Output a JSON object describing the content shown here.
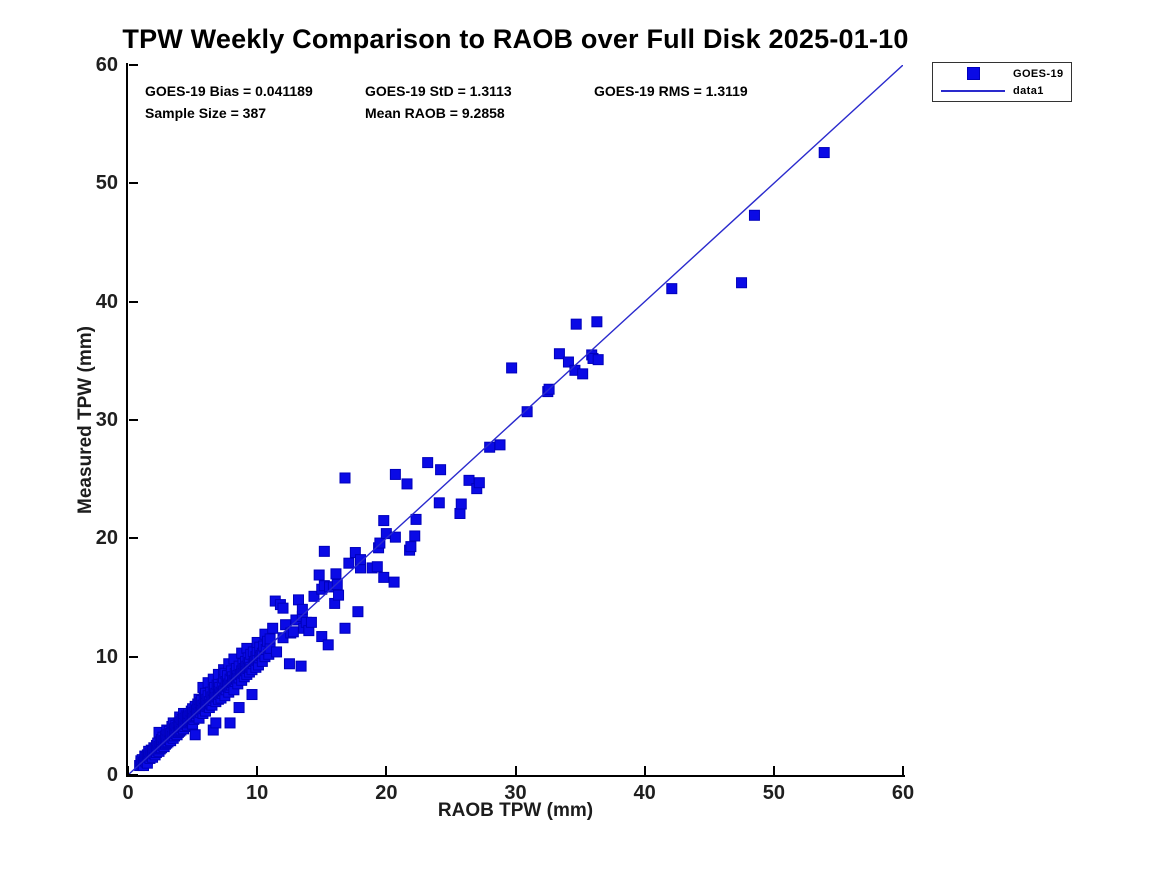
{
  "colors": {
    "marker_fill": "#0a0ae6",
    "marker_edge": "#0000bb",
    "line": "#2a2acd",
    "axis": "#000000",
    "tick_text": "#1f1f1f"
  },
  "stats": [
    {
      "text": "GOES-19 Bias = 0.041189"
    },
    {
      "text": "GOES-19 StD = 1.3113"
    },
    {
      "text": "GOES-19 RMS = 1.3119"
    },
    {
      "text": "Sample Size = 387"
    },
    {
      "text": "Mean RAOB = 9.2858"
    }
  ],
  "legend": {
    "entries": [
      {
        "label": "GOES-19",
        "swatch": "square-marker"
      },
      {
        "label": "data1",
        "swatch": "line"
      }
    ]
  },
  "chart_data": {
    "type": "scatter",
    "title": "TPW Weekly Comparison to RAOB over Full Disk 2025-01-10",
    "xlabel": "RAOB TPW (mm)",
    "ylabel": "Measured TPW (mm)",
    "xlim": [
      0,
      60
    ],
    "ylim": [
      0,
      60
    ],
    "xticks": [
      0,
      10,
      20,
      30,
      40,
      50,
      60
    ],
    "yticks": [
      0,
      10,
      20,
      30,
      40,
      50,
      60
    ],
    "grid": false,
    "legend_position": "top-right-outside",
    "series": [
      {
        "name": "GOES-19",
        "type": "scatter",
        "marker": "square",
        "points": [
          [
            0.9,
            0.8
          ],
          [
            1.0,
            1.0
          ],
          [
            1.0,
            1.2
          ],
          [
            1.1,
            0.9
          ],
          [
            1.1,
            1.3
          ],
          [
            1.2,
            1.1
          ],
          [
            1.2,
            0.8
          ],
          [
            1.3,
            1.2
          ],
          [
            1.3,
            1.6
          ],
          [
            1.4,
            1.1
          ],
          [
            1.4,
            1.5
          ],
          [
            1.5,
            1.3
          ],
          [
            1.5,
            1.7
          ],
          [
            1.5,
            1.0
          ],
          [
            1.6,
            1.5
          ],
          [
            1.6,
            2.0
          ],
          [
            1.7,
            1.4
          ],
          [
            1.7,
            1.8
          ],
          [
            1.8,
            1.6
          ],
          [
            1.8,
            2.1
          ],
          [
            1.9,
            1.5
          ],
          [
            1.9,
            2.0
          ],
          [
            2.0,
            1.8
          ],
          [
            2.0,
            2.3
          ],
          [
            2.1,
            1.7
          ],
          [
            2.1,
            2.2
          ],
          [
            2.2,
            1.9
          ],
          [
            2.2,
            2.5
          ],
          [
            2.3,
            2.1
          ],
          [
            2.3,
            2.7
          ],
          [
            2.4,
            2.0
          ],
          [
            2.4,
            2.4
          ],
          [
            2.4,
            3.6
          ],
          [
            2.5,
            2.2
          ],
          [
            2.5,
            2.8
          ],
          [
            2.6,
            2.3
          ],
          [
            2.6,
            3.0
          ],
          [
            2.7,
            2.5
          ],
          [
            2.7,
            3.2
          ],
          [
            2.8,
            2.4
          ],
          [
            2.8,
            2.9
          ],
          [
            2.9,
            2.6
          ],
          [
            2.9,
            3.3
          ],
          [
            3.0,
            2.7
          ],
          [
            3.0,
            3.1
          ],
          [
            3.0,
            3.8
          ],
          [
            3.1,
            2.8
          ],
          [
            3.1,
            3.4
          ],
          [
            3.2,
            3.0
          ],
          [
            3.2,
            3.7
          ],
          [
            3.3,
            2.9
          ],
          [
            3.3,
            3.5
          ],
          [
            3.4,
            3.2
          ],
          [
            3.4,
            4.1
          ],
          [
            3.5,
            3.1
          ],
          [
            3.5,
            3.6
          ],
          [
            3.5,
            4.4
          ],
          [
            3.6,
            3.3
          ],
          [
            3.6,
            3.9
          ],
          [
            3.7,
            3.5
          ],
          [
            3.7,
            4.2
          ],
          [
            3.8,
            3.4
          ],
          [
            3.8,
            4.0
          ],
          [
            3.9,
            3.6
          ],
          [
            3.9,
            4.4
          ],
          [
            4.0,
            3.7
          ],
          [
            4.0,
            4.2
          ],
          [
            4.0,
            4.9
          ],
          [
            4.1,
            3.8
          ],
          [
            4.1,
            4.5
          ],
          [
            4.2,
            4.0
          ],
          [
            4.2,
            4.7
          ],
          [
            4.3,
            3.9
          ],
          [
            4.3,
            4.4
          ],
          [
            4.3,
            5.2
          ],
          [
            4.4,
            4.1
          ],
          [
            4.4,
            4.8
          ],
          [
            4.5,
            4.3
          ],
          [
            4.5,
            5.0
          ],
          [
            4.6,
            4.2
          ],
          [
            4.6,
            4.9
          ],
          [
            4.7,
            4.4
          ],
          [
            4.7,
            5.2
          ],
          [
            4.8,
            4.5
          ],
          [
            4.8,
            5.0
          ],
          [
            4.9,
            4.6
          ],
          [
            4.9,
            5.4
          ],
          [
            5.0,
            4.3
          ],
          [
            5.0,
            4.8
          ],
          [
            5.0,
            5.6
          ],
          [
            5.1,
            4.7
          ],
          [
            5.1,
            5.3
          ],
          [
            5.2,
            3.4
          ],
          [
            5.2,
            4.9
          ],
          [
            5.2,
            5.8
          ],
          [
            5.3,
            5.0
          ],
          [
            5.3,
            5.5
          ],
          [
            5.4,
            5.2
          ],
          [
            5.4,
            6.0
          ],
          [
            5.5,
            4.8
          ],
          [
            5.5,
            5.7
          ],
          [
            5.5,
            6.4
          ],
          [
            5.6,
            5.3
          ],
          [
            5.6,
            6.1
          ],
          [
            5.7,
            5.5
          ],
          [
            5.7,
            6.3
          ],
          [
            5.8,
            5.2
          ],
          [
            5.8,
            5.9
          ],
          [
            5.8,
            7.4
          ],
          [
            5.9,
            5.6
          ],
          [
            5.9,
            6.5
          ],
          [
            6.0,
            5.4
          ],
          [
            6.0,
            6.1
          ],
          [
            6.0,
            6.9
          ],
          [
            6.1,
            5.8
          ],
          [
            6.1,
            6.4
          ],
          [
            6.2,
            5.9
          ],
          [
            6.2,
            6.7
          ],
          [
            6.2,
            7.8
          ],
          [
            6.3,
            5.7
          ],
          [
            6.3,
            6.2
          ],
          [
            6.4,
            6.0
          ],
          [
            6.4,
            7.0
          ],
          [
            6.5,
            5.9
          ],
          [
            6.5,
            6.6
          ],
          [
            6.6,
            3.8
          ],
          [
            6.6,
            6.3
          ],
          [
            6.6,
            7.2
          ],
          [
            6.6,
            8.1
          ],
          [
            6.7,
            6.5
          ],
          [
            6.7,
            7.4
          ],
          [
            6.8,
            4.4
          ],
          [
            6.8,
            6.2
          ],
          [
            6.8,
            6.9
          ],
          [
            6.9,
            6.6
          ],
          [
            6.9,
            7.6
          ],
          [
            7.0,
            6.4
          ],
          [
            7.0,
            7.1
          ],
          [
            7.0,
            7.9
          ],
          [
            7.0,
            8.5
          ],
          [
            7.1,
            6.8
          ],
          [
            7.1,
            7.4
          ],
          [
            7.2,
            6.5
          ],
          [
            7.2,
            7.0
          ],
          [
            7.3,
            6.9
          ],
          [
            7.3,
            7.7
          ],
          [
            7.4,
            7.1
          ],
          [
            7.4,
            8.2
          ],
          [
            7.4,
            8.9
          ],
          [
            7.5,
            6.7
          ],
          [
            7.5,
            7.3
          ],
          [
            7.5,
            8.6
          ],
          [
            7.6,
            7.2
          ],
          [
            7.6,
            7.9
          ],
          [
            7.7,
            7.5
          ],
          [
            7.7,
            8.4
          ],
          [
            7.8,
            7.0
          ],
          [
            7.8,
            7.7
          ],
          [
            7.8,
            9.4
          ],
          [
            7.9,
            4.4
          ],
          [
            7.9,
            7.4
          ],
          [
            7.9,
            8.1
          ],
          [
            8.0,
            7.6
          ],
          [
            8.0,
            8.8
          ],
          [
            8.1,
            7.8
          ],
          [
            8.1,
            8.3
          ],
          [
            8.2,
            7.2
          ],
          [
            8.2,
            8.0
          ],
          [
            8.2,
            9.8
          ],
          [
            8.3,
            7.9
          ],
          [
            8.3,
            8.6
          ],
          [
            8.4,
            8.1
          ],
          [
            8.4,
            9.0
          ],
          [
            8.5,
            7.7
          ],
          [
            8.5,
            8.4
          ],
          [
            8.6,
            5.7
          ],
          [
            8.6,
            8.2
          ],
          [
            8.6,
            9.2
          ],
          [
            8.7,
            8.5
          ],
          [
            8.8,
            8.0
          ],
          [
            8.8,
            8.8
          ],
          [
            8.8,
            10.3
          ],
          [
            8.9,
            8.6
          ],
          [
            8.9,
            9.4
          ],
          [
            9.0,
            8.3
          ],
          [
            9.0,
            9.0
          ],
          [
            9.1,
            8.8
          ],
          [
            9.1,
            9.6
          ],
          [
            9.2,
            8.5
          ],
          [
            9.2,
            9.2
          ],
          [
            9.2,
            10.7
          ],
          [
            9.3,
            9.0
          ],
          [
            9.3,
            9.9
          ],
          [
            9.4,
            8.7
          ],
          [
            9.4,
            9.5
          ],
          [
            9.5,
            9.1
          ],
          [
            9.5,
            10.2
          ],
          [
            9.6,
            6.8
          ],
          [
            9.6,
            8.9
          ],
          [
            9.7,
            9.4
          ],
          [
            9.7,
            10.4
          ],
          [
            9.8,
            9.6
          ],
          [
            9.9,
            9.1
          ],
          [
            9.9,
            10.0
          ],
          [
            10.0,
            9.7
          ],
          [
            10.0,
            10.5
          ],
          [
            10.0,
            11.2
          ],
          [
            10.1,
            9.3
          ],
          [
            10.2,
            9.9
          ],
          [
            10.2,
            10.8
          ],
          [
            10.3,
            10.1
          ],
          [
            10.4,
            9.6
          ],
          [
            10.4,
            10.3
          ],
          [
            10.5,
            10.9
          ],
          [
            10.6,
            10.0
          ],
          [
            10.6,
            11.9
          ],
          [
            10.7,
            10.6
          ],
          [
            10.8,
            11.3
          ],
          [
            10.9,
            10.2
          ],
          [
            11.0,
            10.7
          ],
          [
            11.0,
            11.5
          ],
          [
            11.2,
            12.4
          ],
          [
            11.4,
            14.7
          ],
          [
            11.5,
            10.4
          ],
          [
            11.8,
            14.4
          ],
          [
            12.0,
            11.6
          ],
          [
            12.0,
            14.1
          ],
          [
            12.2,
            12.7
          ],
          [
            12.5,
            9.4
          ],
          [
            12.6,
            12.0
          ],
          [
            12.8,
            12.1
          ],
          [
            13.0,
            13.1
          ],
          [
            13.2,
            14.8
          ],
          [
            13.4,
            9.2
          ],
          [
            13.5,
            13.4
          ],
          [
            13.5,
            14.0
          ],
          [
            13.6,
            12.4
          ],
          [
            13.8,
            12.9
          ],
          [
            14.0,
            12.2
          ],
          [
            14.2,
            12.9
          ],
          [
            14.4,
            15.1
          ],
          [
            14.8,
            16.9
          ],
          [
            15.0,
            11.7
          ],
          [
            15.0,
            15.7
          ],
          [
            15.2,
            16.0
          ],
          [
            15.2,
            18.9
          ],
          [
            15.5,
            11.0
          ],
          [
            15.6,
            15.9
          ],
          [
            15.9,
            15.9
          ],
          [
            16.0,
            14.5
          ],
          [
            16.1,
            17.0
          ],
          [
            16.2,
            16.1
          ],
          [
            16.3,
            15.2
          ],
          [
            16.8,
            12.4
          ],
          [
            16.8,
            25.1
          ],
          [
            17.1,
            17.9
          ],
          [
            17.6,
            18.8
          ],
          [
            17.8,
            13.8
          ],
          [
            18.0,
            17.5
          ],
          [
            18.0,
            18.2
          ],
          [
            18.9,
            17.5
          ],
          [
            19.3,
            17.6
          ],
          [
            19.4,
            19.2
          ],
          [
            19.5,
            19.6
          ],
          [
            19.8,
            16.7
          ],
          [
            19.8,
            21.5
          ],
          [
            20.0,
            20.4
          ],
          [
            20.6,
            16.3
          ],
          [
            20.7,
            20.1
          ],
          [
            20.7,
            25.4
          ],
          [
            21.6,
            24.6
          ],
          [
            21.8,
            19.0
          ],
          [
            21.9,
            19.3
          ],
          [
            22.2,
            20.2
          ],
          [
            22.3,
            21.6
          ],
          [
            23.2,
            26.4
          ],
          [
            24.1,
            23.0
          ],
          [
            24.2,
            25.8
          ],
          [
            25.7,
            22.1
          ],
          [
            25.8,
            22.9
          ],
          [
            26.4,
            24.9
          ],
          [
            27.0,
            24.2
          ],
          [
            27.2,
            24.7
          ],
          [
            28.0,
            27.7
          ],
          [
            28.8,
            27.9
          ],
          [
            29.7,
            34.4
          ],
          [
            30.9,
            30.7
          ],
          [
            32.5,
            32.4
          ],
          [
            32.6,
            32.6
          ],
          [
            33.4,
            35.6
          ],
          [
            34.1,
            34.9
          ],
          [
            34.6,
            34.2
          ],
          [
            34.7,
            38.1
          ],
          [
            35.2,
            33.9
          ],
          [
            35.9,
            35.5
          ],
          [
            36.0,
            35.2
          ],
          [
            36.3,
            38.3
          ],
          [
            36.4,
            35.1
          ],
          [
            42.1,
            41.1
          ],
          [
            47.5,
            41.6
          ],
          [
            48.5,
            47.3
          ],
          [
            53.9,
            52.6
          ]
        ]
      },
      {
        "name": "data1",
        "type": "line",
        "points": [
          [
            0,
            0
          ],
          [
            60,
            60
          ]
        ]
      }
    ]
  }
}
